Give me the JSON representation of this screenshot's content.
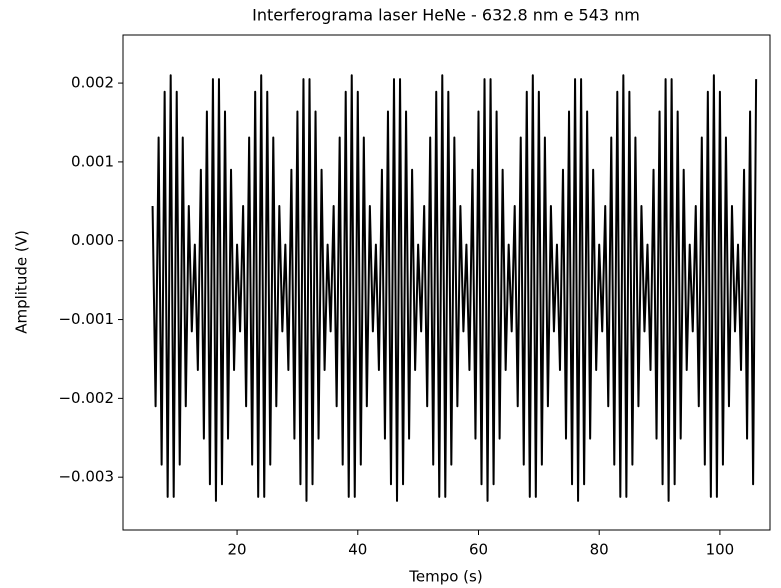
{
  "chart_data": {
    "type": "line",
    "title": "Interferograma laser HeNe - 632.8 nm e 543 nm",
    "xlabel": "Tempo (s)",
    "ylabel": "Amplitude (V)",
    "color": "#000000",
    "xlim": [
      1.1,
      108.3
    ],
    "ylim": [
      -0.00367,
      0.00261
    ],
    "xticks": [
      20,
      40,
      60,
      80,
      100
    ],
    "yticks": [
      {
        "value": -0.003,
        "label": "−0.003"
      },
      {
        "value": -0.002,
        "label": "−0.002"
      },
      {
        "value": -0.001,
        "label": "−0.001"
      },
      {
        "value": 0,
        "label": "0.000"
      },
      {
        "value": 0.001,
        "label": "0.001"
      },
      {
        "value": 0.002,
        "label": "0.002"
      }
    ],
    "x": [
      6,
      6.5,
      7,
      7.5,
      8,
      8.5,
      9,
      9.5,
      10,
      10.5,
      11,
      11.5,
      12,
      12.5,
      13,
      13.5,
      14,
      14.5,
      15,
      15.5,
      16,
      16.5,
      17,
      17.5,
      18,
      18.5,
      19,
      19.5,
      20,
      20.5,
      21,
      21.5,
      22,
      22.5,
      23,
      23.5,
      24,
      24.5,
      25,
      25.5,
      26,
      26.5,
      27,
      27.5,
      28,
      28.5,
      29,
      29.5,
      30,
      30.5,
      31,
      31.5,
      32,
      32.5,
      33,
      33.5,
      34,
      34.5,
      35,
      35.5,
      36,
      36.5,
      37,
      37.5,
      38,
      38.5,
      39,
      39.5,
      40,
      40.5,
      41,
      41.5,
      42,
      42.5,
      43,
      43.5,
      44,
      44.5,
      45,
      45.5,
      46,
      46.5,
      47,
      47.5,
      48,
      48.5,
      49,
      49.5,
      50,
      50.5,
      51,
      51.5,
      52,
      52.5,
      53,
      53.5,
      54,
      54.5,
      55,
      55.5,
      56,
      56.5,
      57,
      57.5,
      58,
      58.5,
      59,
      59.5,
      60,
      60.5,
      61,
      61.5,
      62,
      62.5,
      63,
      63.5,
      64,
      64.5,
      65,
      65.5,
      66,
      66.5,
      67,
      67.5,
      68,
      68.5,
      69,
      69.5,
      70,
      70.5,
      71,
      71.5,
      72,
      72.5,
      73,
      73.5,
      74,
      74.5,
      75,
      75.5,
      76,
      76.5,
      77,
      77.5,
      78,
      78.5,
      79,
      79.5,
      80,
      80.5,
      81,
      81.5,
      82,
      82.5,
      83,
      83.5,
      84,
      84.5,
      85,
      85.5,
      86,
      86.5,
      87,
      87.5,
      88,
      88.5,
      89,
      89.5,
      90,
      90.5,
      91,
      91.5,
      92,
      92.5,
      93,
      93.5,
      94,
      94.5,
      95,
      95.5,
      96,
      96.5,
      97,
      97.5,
      98,
      98.5,
      99,
      99.5,
      100,
      100.5,
      101,
      101.5,
      102,
      102.5,
      103,
      103.5,
      104,
      104.5,
      105,
      105.5,
      106
    ],
    "values": [
      0.00044,
      -0.0021,
      0.00131,
      -0.00284,
      0.00189,
      -0.00325,
      0.0021,
      -0.00325,
      0.00189,
      -0.00284,
      0.00131,
      -0.0021,
      0.00044,
      -0.00115,
      -5e-05,
      -0.00164,
      0.0009,
      -0.00251,
      0.00164,
      -0.00309,
      0.00205,
      -0.0033,
      0.00205,
      -0.00309,
      0.00164,
      -0.00251,
      0.0009,
      -0.00164,
      -5e-05,
      -0.00115,
      0.00044,
      -0.0021,
      0.00131,
      -0.00284,
      0.00189,
      -0.00325,
      0.0021,
      -0.00325,
      0.00189,
      -0.00284,
      0.00131,
      -0.0021,
      0.00044,
      -0.00115,
      -5e-05,
      -0.00164,
      0.0009,
      -0.00251,
      0.00164,
      -0.00309,
      0.00205,
      -0.0033,
      0.00205,
      -0.00309,
      0.00164,
      -0.00251,
      0.0009,
      -0.00164,
      -5e-05,
      -0.00115,
      0.00044,
      -0.0021,
      0.00131,
      -0.00284,
      0.00189,
      -0.00325,
      0.0021,
      -0.00325,
      0.00189,
      -0.00284,
      0.00131,
      -0.0021,
      0.00044,
      -0.00115,
      -5e-05,
      -0.00164,
      0.0009,
      -0.00251,
      0.00164,
      -0.00309,
      0.00205,
      -0.0033,
      0.00205,
      -0.00309,
      0.00164,
      -0.00251,
      0.0009,
      -0.00164,
      -5e-05,
      -0.00115,
      0.00044,
      -0.0021,
      0.00131,
      -0.00284,
      0.00189,
      -0.00325,
      0.0021,
      -0.00325,
      0.00189,
      -0.00284,
      0.00131,
      -0.0021,
      0.00044,
      -0.00115,
      -5e-05,
      -0.00164,
      0.0009,
      -0.00251,
      0.00164,
      -0.00309,
      0.00205,
      -0.0033,
      0.00205,
      -0.00309,
      0.00164,
      -0.00251,
      0.0009,
      -0.00164,
      -5e-05,
      -0.00115,
      0.00044,
      -0.0021,
      0.00131,
      -0.00284,
      0.00189,
      -0.00325,
      0.0021,
      -0.00325,
      0.00189,
      -0.00284,
      0.00131,
      -0.0021,
      0.00044,
      -0.00115,
      -5e-05,
      -0.00164,
      0.0009,
      -0.00251,
      0.00164,
      -0.00309,
      0.00205,
      -0.0033,
      0.00205,
      -0.00309,
      0.00164,
      -0.00251,
      0.0009,
      -0.00164,
      -5e-05,
      -0.00115,
      0.00044,
      -0.0021,
      0.00131,
      -0.00284,
      0.00189,
      -0.00325,
      0.0021,
      -0.00325,
      0.00189,
      -0.00284,
      0.00131,
      -0.0021,
      0.00044,
      -0.00115,
      -5e-05,
      -0.00164,
      0.0009,
      -0.00251,
      0.00164,
      -0.00309,
      0.00205,
      -0.0033,
      0.00205,
      -0.00309,
      0.00164,
      -0.00251,
      0.0009,
      -0.00164,
      -5e-05,
      -0.00115,
      0.00044,
      -0.0021,
      0.00131,
      -0.00284,
      0.00189,
      -0.00325,
      0.0021,
      -0.00325,
      0.00189,
      -0.00284,
      0.00131,
      -0.0021,
      0.00044,
      -0.00115,
      -5e-05,
      -0.00164,
      0.0009,
      -0.00251,
      0.00164,
      -0.00309,
      0.00205
    ]
  }
}
